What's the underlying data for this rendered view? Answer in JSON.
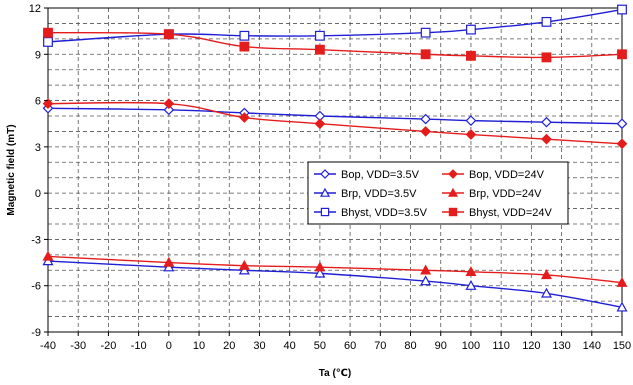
{
  "chart_data": {
    "type": "line",
    "title": "",
    "xlabel": "Ta (℃)",
    "ylabel": "Magnetic field (mT)",
    "xlim": [
      -40,
      150
    ],
    "ylim": [
      -9,
      12
    ],
    "xticks": [
      -40,
      -30,
      -20,
      -10,
      0,
      10,
      20,
      30,
      40,
      50,
      60,
      70,
      80,
      90,
      100,
      110,
      120,
      130,
      140,
      150
    ],
    "yticks": [
      -9,
      -6,
      -3,
      0,
      3,
      6,
      9,
      12
    ],
    "grid": true,
    "legend_position": "center-right",
    "series": [
      {
        "name": "Bop, VDD=3.5V",
        "color": "#1f1fd6",
        "marker": "diamond-open",
        "x": [
          -40,
          0,
          25,
          50,
          85,
          100,
          125,
          150
        ],
        "y": [
          5.5,
          5.4,
          5.2,
          5.0,
          4.8,
          4.7,
          4.6,
          4.5
        ]
      },
      {
        "name": "Bop, VDD=24V",
        "color": "#e51c1c",
        "marker": "diamond-filled",
        "x": [
          -40,
          0,
          25,
          50,
          85,
          100,
          125,
          150
        ],
        "y": [
          5.8,
          5.8,
          4.9,
          4.5,
          4.0,
          3.8,
          3.5,
          3.2
        ]
      },
      {
        "name": "Brp, VDD=3.5V",
        "color": "#1f1fd6",
        "marker": "triangle-open",
        "x": [
          -40,
          0,
          25,
          50,
          85,
          100,
          125,
          150
        ],
        "y": [
          -4.4,
          -4.8,
          -5.0,
          -5.2,
          -5.7,
          -6.0,
          -6.5,
          -7.4
        ]
      },
      {
        "name": "Brp, VDD=24V",
        "color": "#e51c1c",
        "marker": "triangle-filled",
        "x": [
          -40,
          0,
          25,
          50,
          85,
          100,
          125,
          150
        ],
        "y": [
          -4.1,
          -4.5,
          -4.7,
          -4.8,
          -5.0,
          -5.1,
          -5.3,
          -5.8
        ]
      },
      {
        "name": "Bhyst, VDD=3.5V",
        "color": "#1f1fd6",
        "marker": "square-open",
        "x": [
          -40,
          0,
          25,
          50,
          85,
          100,
          125,
          150
        ],
        "y": [
          9.8,
          10.3,
          10.2,
          10.2,
          10.4,
          10.6,
          11.1,
          11.9
        ]
      },
      {
        "name": "Bhyst, VDD=24V",
        "color": "#e51c1c",
        "marker": "square-filled",
        "x": [
          -40,
          0,
          25,
          50,
          85,
          100,
          125,
          150
        ],
        "y": [
          10.4,
          10.3,
          9.5,
          9.3,
          9.0,
          8.9,
          8.8,
          9.0
        ]
      }
    ]
  }
}
